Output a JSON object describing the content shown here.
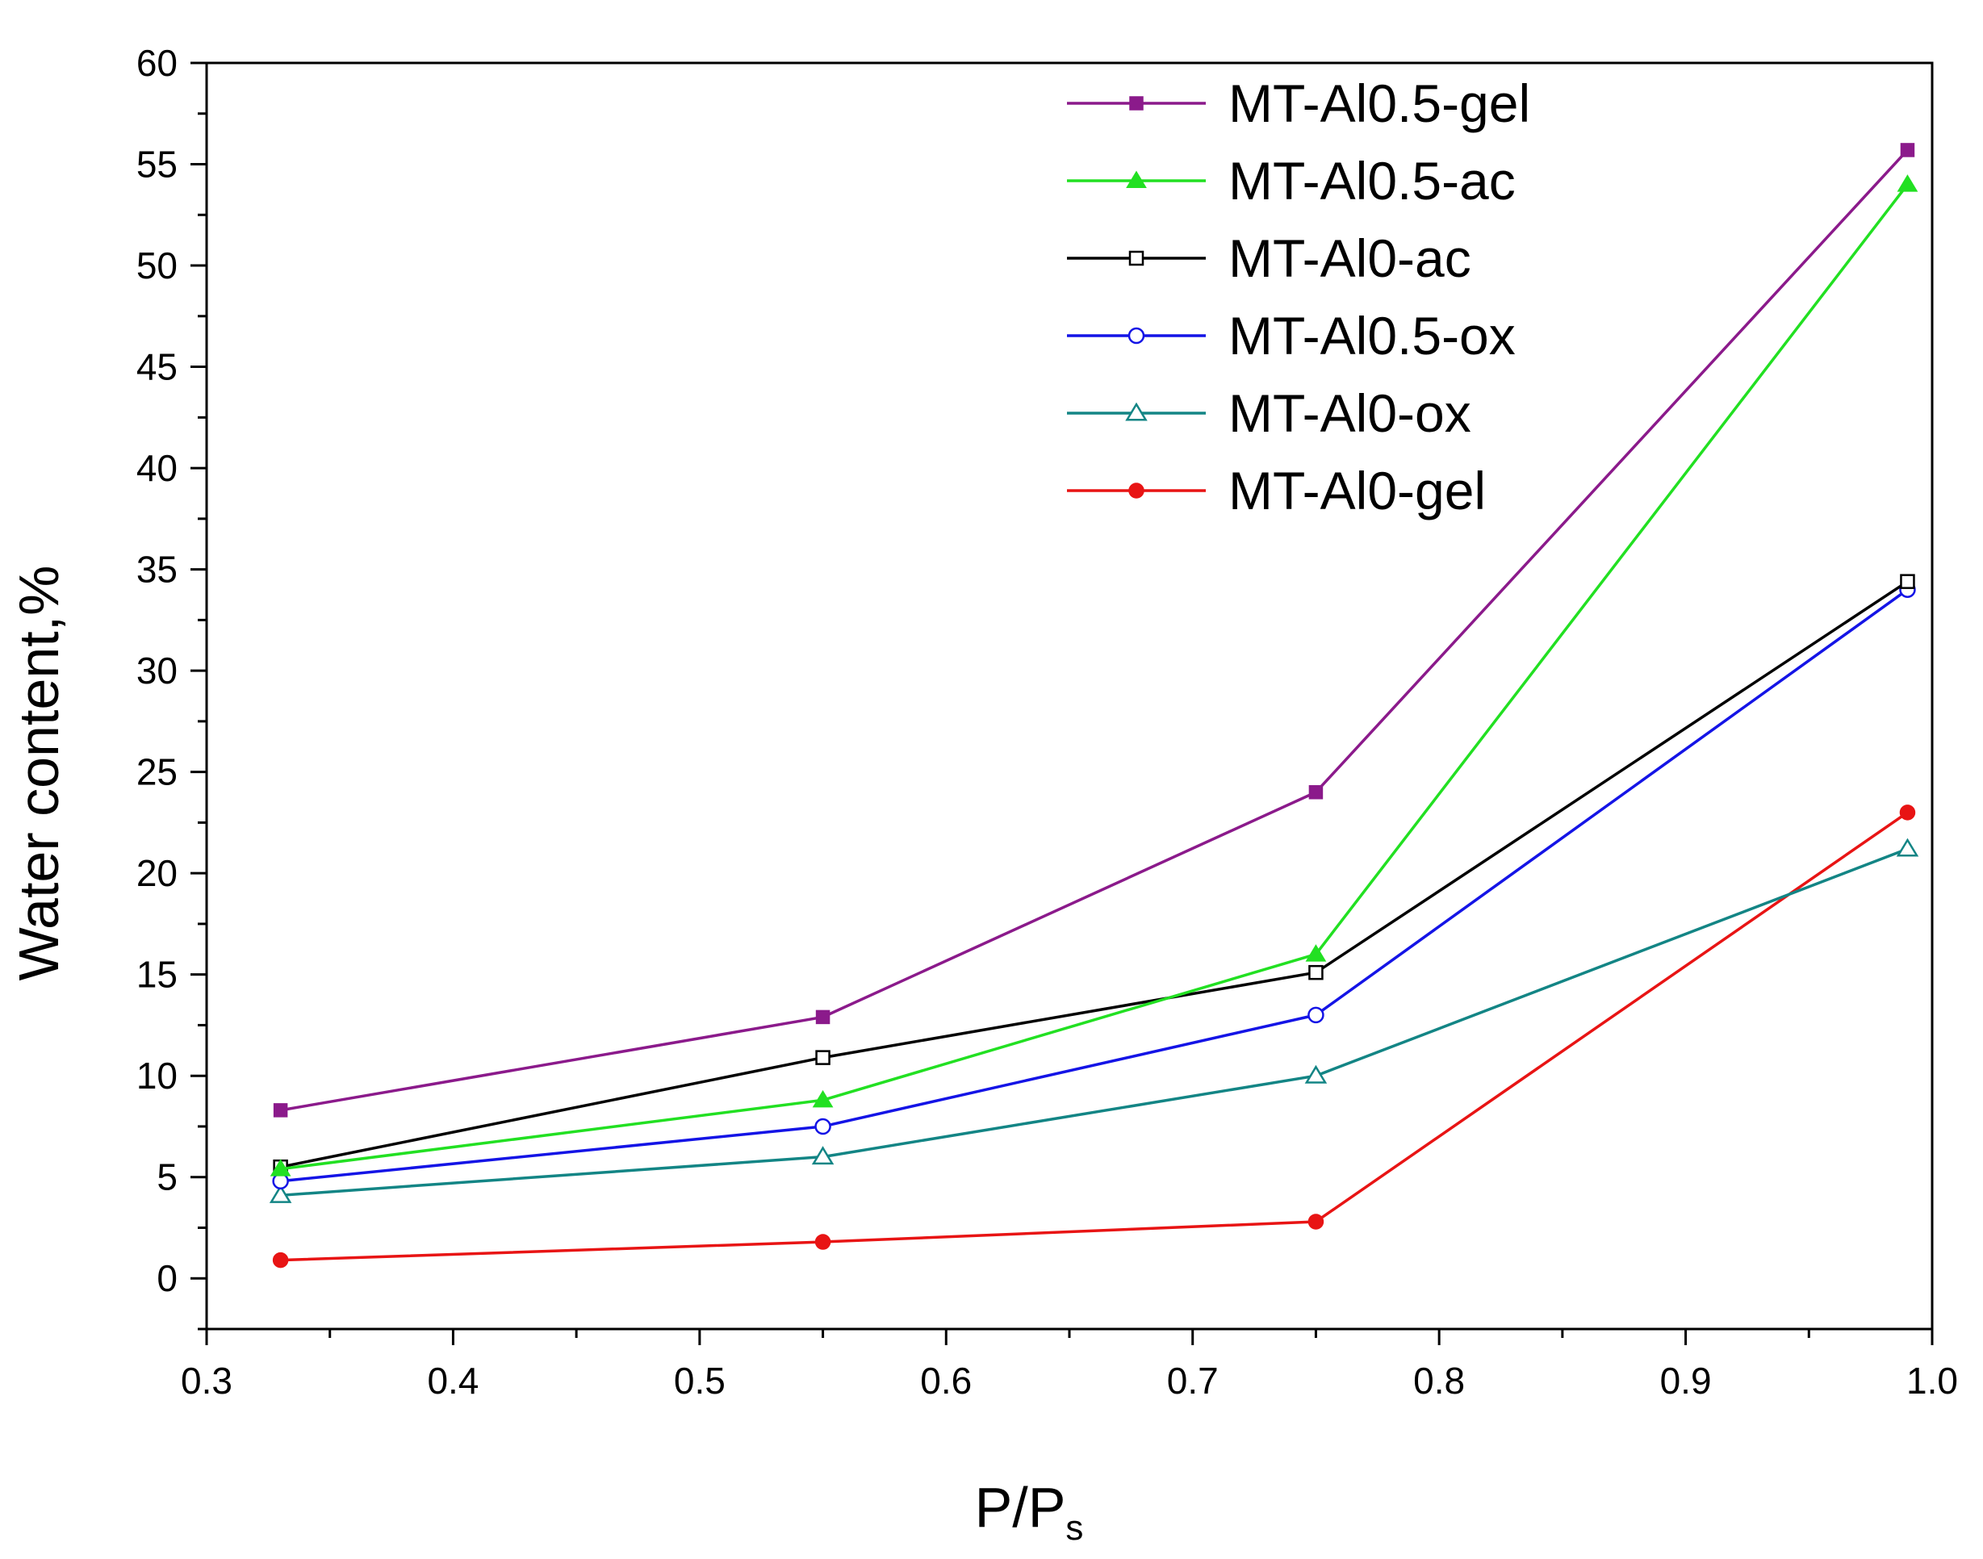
{
  "chart_data": {
    "type": "line",
    "title": "",
    "xlabel": "P/P",
    "xlabel_sub": "s",
    "ylabel": "Water content,%",
    "xlim": [
      0.3,
      1.0
    ],
    "ylim": [
      -2.5,
      60
    ],
    "xticks": [
      0.3,
      0.4,
      0.5,
      0.6,
      0.7,
      0.8,
      0.9,
      1.0
    ],
    "xtick_labels": [
      "0.3",
      "0.4",
      "0.5",
      "0.6",
      "0.7",
      "0.8",
      "0.9",
      "1.0"
    ],
    "yticks": [
      0,
      5,
      10,
      15,
      20,
      25,
      30,
      35,
      40,
      45,
      50,
      55,
      60
    ],
    "ytick_labels": [
      "0",
      "5",
      "10",
      "15",
      "20",
      "25",
      "30",
      "35",
      "40",
      "45",
      "50",
      "55",
      "60"
    ],
    "grid": false,
    "legend_position": "top-right",
    "x": [
      0.33,
      0.55,
      0.75,
      0.99
    ],
    "series": [
      {
        "name": "MT-Al0.5-gel",
        "values": [
          8.3,
          12.9,
          24.0,
          55.7
        ],
        "color": "#8B1A8B",
        "marker": "square",
        "filled": true
      },
      {
        "name": "MT-Al0.5-ac",
        "values": [
          5.4,
          8.8,
          16.0,
          54.0
        ],
        "color": "#22E022",
        "marker": "triangle",
        "filled": true
      },
      {
        "name": "MT-Al0-ac",
        "values": [
          5.5,
          10.9,
          15.1,
          34.4
        ],
        "color": "#000000",
        "marker": "square",
        "filled": false
      },
      {
        "name": "MT-Al0.5-ox",
        "values": [
          4.8,
          7.5,
          13.0,
          34.0
        ],
        "color": "#1414E6",
        "marker": "circle",
        "filled": false
      },
      {
        "name": "MT-Al0-ox",
        "values": [
          4.1,
          6.0,
          10.0,
          21.2
        ],
        "color": "#138585",
        "marker": "triangle",
        "filled": false
      },
      {
        "name": "MT-Al0-gel",
        "values": [
          0.9,
          1.8,
          2.8,
          23.0
        ],
        "color": "#E81414",
        "marker": "circle",
        "filled": true
      }
    ]
  }
}
